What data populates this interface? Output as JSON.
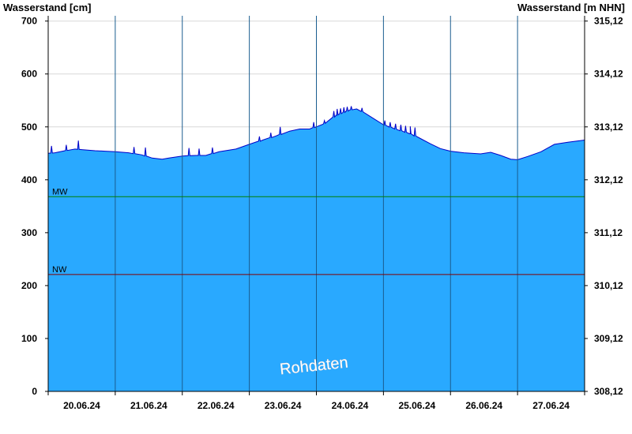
{
  "chart_data": {
    "type": "area",
    "y_axis_left_title": "Wasserstand [cm]",
    "y_axis_right_title": "Wasserstand [m NHN]",
    "ylim": [
      0,
      710
    ],
    "left_ticks": [
      0,
      100,
      200,
      300,
      400,
      500,
      600,
      700
    ],
    "right_ticks": [
      "308,12",
      "309,12",
      "310,12",
      "311,12",
      "312,12",
      "313,12",
      "314,12",
      "315,12"
    ],
    "x_labels": [
      "20.06.24",
      "21.06.24",
      "22.06.24",
      "23.06.24",
      "24.06.24",
      "25.06.24",
      "26.06.24",
      "27.06.24"
    ],
    "x_range_days": [
      0,
      8
    ],
    "reference_lines": [
      {
        "label": "MW",
        "value": 368,
        "color": "#008000"
      },
      {
        "label": "NW",
        "value": 221,
        "color": "#800000"
      }
    ],
    "series": [
      {
        "color": "#29a9ff",
        "points": [
          [
            0.0,
            450
          ],
          [
            0.1,
            451
          ],
          [
            0.25,
            455
          ],
          [
            0.4,
            458
          ],
          [
            0.5,
            457
          ],
          [
            0.7,
            455
          ],
          [
            0.85,
            454
          ],
          [
            1.0,
            453
          ],
          [
            1.2,
            451
          ],
          [
            1.4,
            447
          ],
          [
            1.55,
            441
          ],
          [
            1.7,
            439
          ],
          [
            1.8,
            441
          ],
          [
            2.0,
            445
          ],
          [
            2.2,
            446
          ],
          [
            2.35,
            446
          ],
          [
            2.55,
            453
          ],
          [
            2.8,
            458
          ],
          [
            3.0,
            467
          ],
          [
            3.2,
            475
          ],
          [
            3.4,
            483
          ],
          [
            3.6,
            492
          ],
          [
            3.75,
            496
          ],
          [
            3.9,
            496
          ],
          [
            4.1,
            505
          ],
          [
            4.3,
            522
          ],
          [
            4.5,
            532
          ],
          [
            4.6,
            534
          ],
          [
            4.7,
            528
          ],
          [
            4.85,
            516
          ],
          [
            5.0,
            504
          ],
          [
            5.2,
            495
          ],
          [
            5.4,
            487
          ],
          [
            5.55,
            478
          ],
          [
            5.7,
            468
          ],
          [
            5.85,
            459
          ],
          [
            6.0,
            454
          ],
          [
            6.2,
            451
          ],
          [
            6.45,
            449
          ],
          [
            6.6,
            452
          ],
          [
            6.75,
            446
          ],
          [
            6.9,
            439
          ],
          [
            7.0,
            438
          ],
          [
            7.15,
            444
          ],
          [
            7.35,
            453
          ],
          [
            7.55,
            467
          ],
          [
            7.75,
            471
          ],
          [
            8.0,
            475
          ]
        ],
        "spikes": [
          [
            0.05,
            464
          ],
          [
            0.27,
            466
          ],
          [
            0.45,
            474
          ],
          [
            1.28,
            462
          ],
          [
            1.45,
            461
          ],
          [
            2.1,
            460
          ],
          [
            2.25,
            459
          ],
          [
            2.45,
            461
          ],
          [
            3.15,
            482
          ],
          [
            3.32,
            489
          ],
          [
            3.46,
            500
          ],
          [
            3.96,
            509
          ],
          [
            4.12,
            512
          ],
          [
            4.26,
            530
          ],
          [
            4.31,
            534
          ],
          [
            4.36,
            535
          ],
          [
            4.41,
            537
          ],
          [
            4.46,
            538
          ],
          [
            4.52,
            539
          ],
          [
            4.68,
            536
          ],
          [
            5.02,
            512
          ],
          [
            5.1,
            509
          ],
          [
            5.18,
            506
          ],
          [
            5.26,
            504
          ],
          [
            5.33,
            502
          ],
          [
            5.4,
            501
          ],
          [
            5.47,
            499
          ]
        ]
      }
    ],
    "watermark": "Rohdaten"
  }
}
